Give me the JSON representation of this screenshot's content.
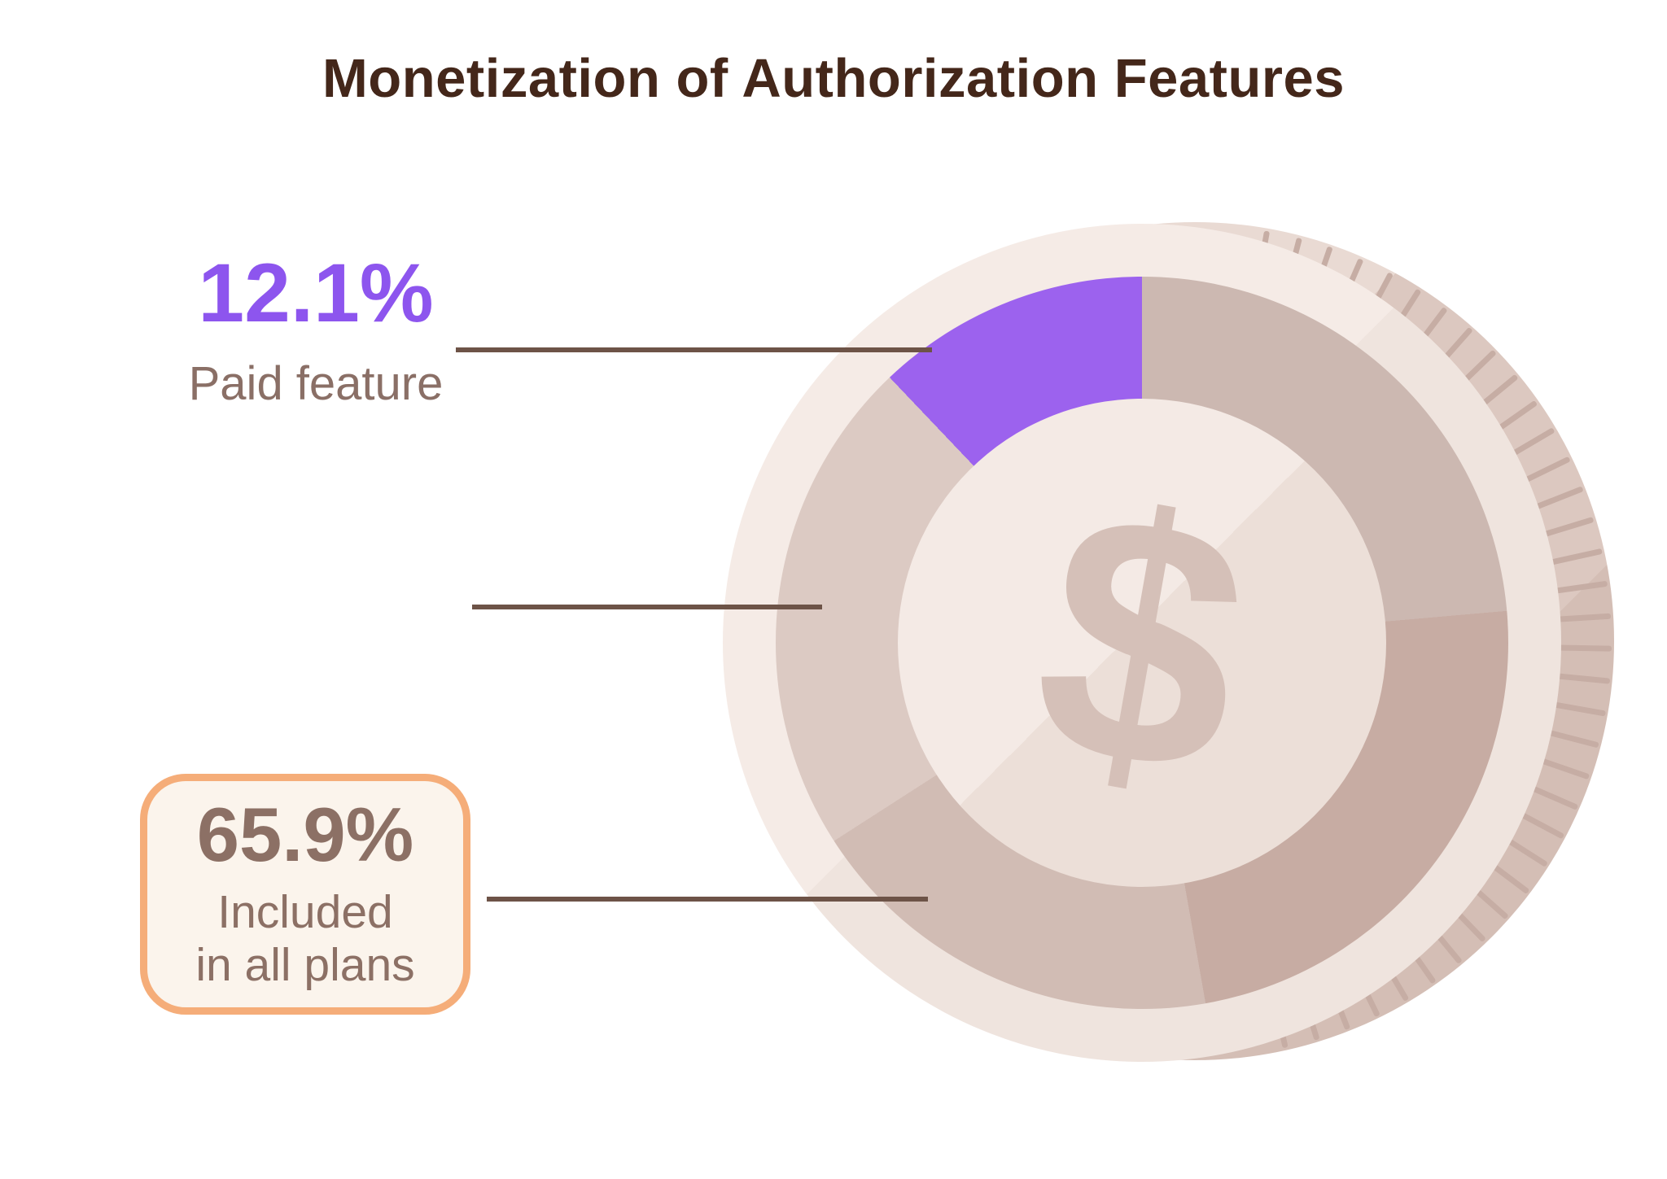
{
  "title": "Monetization of Authorization Features",
  "chart_data": {
    "type": "pie",
    "donut": true,
    "title": "Monetization of Authorization Features",
    "legend_position": "none",
    "annotation_style": "leader-lines",
    "slices": [
      {
        "label": "Paid feature",
        "value": 12.1,
        "display": "12.1%",
        "color": "#9c62ee"
      },
      {
        "label": "",
        "value": 22.0,
        "display": "",
        "color": "#dccac3",
        "derived_unlabeled": true
      },
      {
        "label": "Included in all plans",
        "value": 65.9,
        "display": "65.9%",
        "color": "#ccb8b1"
      }
    ]
  },
  "callouts": {
    "paid": {
      "value": "12.1%",
      "label": "Paid feature"
    },
    "unlabeled": {
      "value": "",
      "label": ""
    },
    "included": {
      "value": "65.9%",
      "label_line1": "Included",
      "label_line2": "in all plans"
    }
  },
  "coin": {
    "currency_symbol": "$"
  },
  "colors": {
    "background": "#ffffff",
    "title_brown": "#44271a",
    "value_purple": "#8d55ee",
    "wedge_purple": "#9c62ee",
    "muted_brown_text": "#8a6f66",
    "leader_line": "#6d5347",
    "box_border_orange": "#f5ad79",
    "box_fill": "#fbf4ec",
    "coin_face": "#f3e9e4",
    "coin_edge": "#dcc8c0",
    "coin_ridge": "#c6ada4",
    "ring_shade_a": "#ccb8b1",
    "ring_shade_b": "#c7aca3",
    "ring_shade_c": "#d1bcb4",
    "ring_light": "#dccac3",
    "disc_light": "#f4eae5",
    "dollar_sign": "#d5c0b8"
  }
}
